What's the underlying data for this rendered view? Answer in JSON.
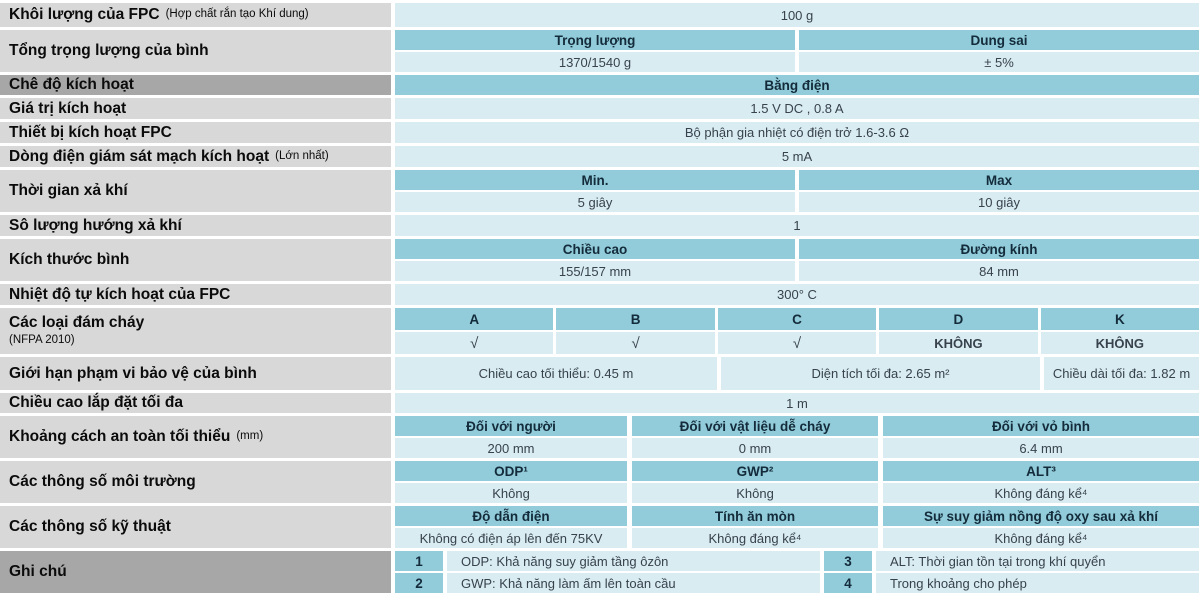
{
  "table": {
    "colors": {
      "header_teal": "#92cbd9",
      "cell_light_blue": "#d9ecf2",
      "label_gray": "#d8d8d8",
      "label_dark_gray": "#a7a7a7"
    },
    "rows": {
      "r1": {
        "label": "Khôi lượng của FPC",
        "label_note": "(Hợp chất rắn tạo Khí dung)",
        "value": "100 g"
      },
      "r2": {
        "label": "Tổng trọng lượng của bình",
        "headers": [
          "Trọng lượng",
          "Dung sai"
        ],
        "values": [
          "1370/1540 g",
          "± 5%"
        ]
      },
      "r3": {
        "label": "Chê độ kích hoạt",
        "value": "Bằng điện"
      },
      "r4": {
        "label": "Giá trị kích hoạt",
        "value": "1.5 V DC , 0.8 A"
      },
      "r5": {
        "label": "Thiết bị kích hoạt FPC",
        "value": "Bộ phận gia nhiệt có điện trở 1.6-3.6 Ω"
      },
      "r6": {
        "label": "Dòng điện giám sát mạch kích hoạt",
        "label_note": "(Lớn nhất)",
        "value": "5 mA"
      },
      "r7": {
        "label": "Thời gian xả khí",
        "headers": [
          "Min.",
          "Max"
        ],
        "values": [
          "5 giây",
          "10 giây"
        ]
      },
      "r8": {
        "label": "Sô lượng hướng xả khí",
        "value": "1"
      },
      "r9": {
        "label": "Kích thước bình",
        "headers": [
          "Chiều cao",
          "Đường kính"
        ],
        "values": [
          "155/157 mm",
          "84 mm"
        ]
      },
      "r10": {
        "label": "Nhiệt độ tự kích hoạt của FPC",
        "value": "300° C"
      },
      "r11": {
        "label": "Các loại đám cháy",
        "label_note": "(NFPA 2010)",
        "classes": [
          "A",
          "B",
          "C",
          "D",
          "K"
        ],
        "marks": [
          "√",
          "√",
          "√",
          "KHÔNG",
          "KHÔNG"
        ]
      },
      "r12": {
        "label": "Giới hạn phạm vi bảo vệ của bình",
        "cells": [
          "Chiều cao tối thiểu:  0.45 m",
          "Diện tích tối đa: 2.65 m²",
          "Chiều dài tối đa: 1.82 m"
        ]
      },
      "r13": {
        "label": "Chiều cao lắp đặt tối đa",
        "value": "1 m"
      },
      "r14": {
        "label": "Khoảng cách an toàn tối thiểu",
        "label_note": "(mm)",
        "headers": [
          "Đối với người",
          "Đối với vật liệu dễ cháy",
          "Đối với vỏ bình"
        ],
        "values": [
          "200 mm",
          "0 mm",
          "6.4 mm"
        ]
      },
      "r15": {
        "label": "Các thông số môi trường",
        "headers": [
          "ODP¹",
          "GWP²",
          "ALT³"
        ],
        "values": [
          "Không",
          "Không",
          "Không đáng kể⁴"
        ]
      },
      "r16": {
        "label": "Các thông số kỹ thuật",
        "headers": [
          "Độ dẫn điện",
          "Tính ăn mòn",
          "Sự suy giảm nồng độ oxy sau xả khí"
        ],
        "values": [
          "Không có điện áp lên đến 75KV",
          "Không đáng kể⁴",
          "Không đáng kể⁴"
        ]
      },
      "r17": {
        "label": "Ghi chú",
        "notes": [
          {
            "num": "1",
            "text": "ODP: Khả năng suy giảm tầng ôzôn"
          },
          {
            "num": "2",
            "text": "GWP: Khả năng làm ấm lên toàn cầu"
          },
          {
            "num": "3",
            "text": "ALT: Thời gian tồn tại trong khí quyển"
          },
          {
            "num": "4",
            "text": "Trong khoảng cho phép"
          }
        ]
      }
    }
  }
}
